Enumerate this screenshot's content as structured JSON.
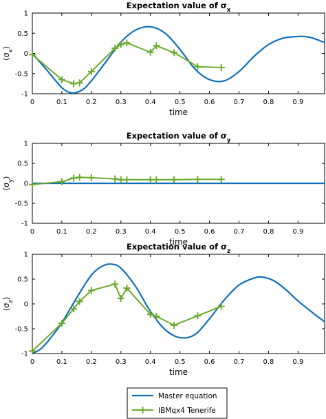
{
  "chart_data": [
    {
      "type": "line",
      "title": "Expectation value of σx",
      "xlabel": "time",
      "ylabel": "⟨σx⟩",
      "xlim": [
        0,
        0.99
      ],
      "ylim": [
        -1,
        1
      ],
      "xticks": [
        "0",
        "0.1",
        "0.2",
        "0.3",
        "0.4",
        "0.5",
        "0.6",
        "0.7",
        "0.8",
        "0.9"
      ],
      "yticks": [
        "-1",
        "-0.5",
        "0",
        "0.5",
        "1"
      ],
      "grid": false,
      "series": [
        {
          "name": "Master equation",
          "color": "#0e6eb8",
          "x": [
            0,
            0.05,
            0.1,
            0.135,
            0.17,
            0.2,
            0.25,
            0.3,
            0.35,
            0.4,
            0.45,
            0.5,
            0.55,
            0.6,
            0.65,
            0.7,
            0.75,
            0.8,
            0.85,
            0.9,
            0.92,
            0.95,
            0.99
          ],
          "y": [
            0,
            -0.42,
            -0.85,
            -0.98,
            -0.9,
            -0.68,
            -0.2,
            0.28,
            0.58,
            0.66,
            0.5,
            0.1,
            -0.38,
            -0.65,
            -0.68,
            -0.45,
            -0.08,
            0.22,
            0.38,
            0.42,
            0.42,
            0.38,
            0.27
          ]
        },
        {
          "name": "IBMqx4 Tenerife",
          "color": "#6aaa2c",
          "x": [
            0,
            0.1,
            0.14,
            0.16,
            0.2,
            0.28,
            0.3,
            0.32,
            0.4,
            0.42,
            0.48,
            0.56,
            0.64
          ],
          "y": [
            -0.03,
            -0.65,
            -0.75,
            -0.73,
            -0.45,
            0.13,
            0.22,
            0.26,
            0.03,
            0.19,
            0.02,
            -0.33,
            -0.35
          ]
        }
      ]
    },
    {
      "type": "line",
      "title": "Expectation value of σy",
      "xlabel": "time",
      "ylabel": "⟨σy⟩",
      "xlim": [
        0,
        0.99
      ],
      "ylim": [
        -1,
        1
      ],
      "xticks": [
        "0",
        "0.1",
        "0.2",
        "0.3",
        "0.4",
        "0.5",
        "0.6",
        "0.7",
        "0.8",
        "0.9"
      ],
      "yticks": [
        "-1",
        "-0.5",
        "0",
        "0.5",
        "1"
      ],
      "grid": false,
      "series": [
        {
          "name": "Master equation",
          "color": "#0e6eb8",
          "x": [
            0,
            0.99
          ],
          "y": [
            0,
            0
          ]
        },
        {
          "name": "IBMqx4 Tenerife",
          "color": "#6aaa2c",
          "x": [
            0,
            0.1,
            0.14,
            0.16,
            0.2,
            0.28,
            0.3,
            0.32,
            0.4,
            0.42,
            0.48,
            0.56,
            0.64
          ],
          "y": [
            -0.03,
            0.04,
            0.13,
            0.15,
            0.14,
            0.11,
            0.09,
            0.09,
            0.09,
            0.09,
            0.09,
            0.1,
            0.1
          ]
        }
      ]
    },
    {
      "type": "line",
      "title": "Expectation value of σz",
      "xlabel": "time",
      "ylabel": "⟨σz⟩",
      "xlim": [
        0,
        0.99
      ],
      "ylim": [
        -1,
        1
      ],
      "xticks": [
        "0",
        "0.1",
        "0.2",
        "0.3",
        "0.4",
        "0.5",
        "0.6",
        "0.7",
        "0.8",
        "0.9"
      ],
      "yticks": [
        "-1",
        "-0.5",
        "0",
        "0.5",
        "1"
      ],
      "grid": false,
      "series": [
        {
          "name": "Master equation",
          "color": "#0e6eb8",
          "x": [
            0,
            0.03,
            0.06,
            0.1,
            0.15,
            0.2,
            0.24,
            0.27,
            0.3,
            0.35,
            0.4,
            0.45,
            0.5,
            0.55,
            0.6,
            0.65,
            0.7,
            0.75,
            0.78,
            0.82,
            0.86,
            0.9,
            0.95,
            0.99
          ],
          "y": [
            -1,
            -0.9,
            -0.7,
            -0.38,
            0.12,
            0.58,
            0.77,
            0.8,
            0.72,
            0.35,
            -0.15,
            -0.52,
            -0.68,
            -0.62,
            -0.3,
            0.08,
            0.38,
            0.52,
            0.54,
            0.46,
            0.28,
            0.06,
            -0.18,
            -0.36
          ]
        },
        {
          "name": "IBMqx4 Tenerife",
          "color": "#6aaa2c",
          "x": [
            0,
            0.1,
            0.14,
            0.16,
            0.2,
            0.28,
            0.3,
            0.32,
            0.4,
            0.42,
            0.48,
            0.56,
            0.64
          ],
          "y": [
            -0.95,
            -0.39,
            -0.1,
            0.05,
            0.27,
            0.4,
            0.11,
            0.32,
            -0.21,
            -0.25,
            -0.43,
            -0.24,
            -0.05
          ]
        }
      ]
    }
  ],
  "legend": {
    "placement": "bottom-center",
    "entries": [
      {
        "label": "Master equation",
        "color": "#0e6eb8",
        "marker": "none"
      },
      {
        "label": "IBMqx4 Tenerife",
        "color": "#6aaa2c",
        "marker": "plus"
      }
    ]
  }
}
